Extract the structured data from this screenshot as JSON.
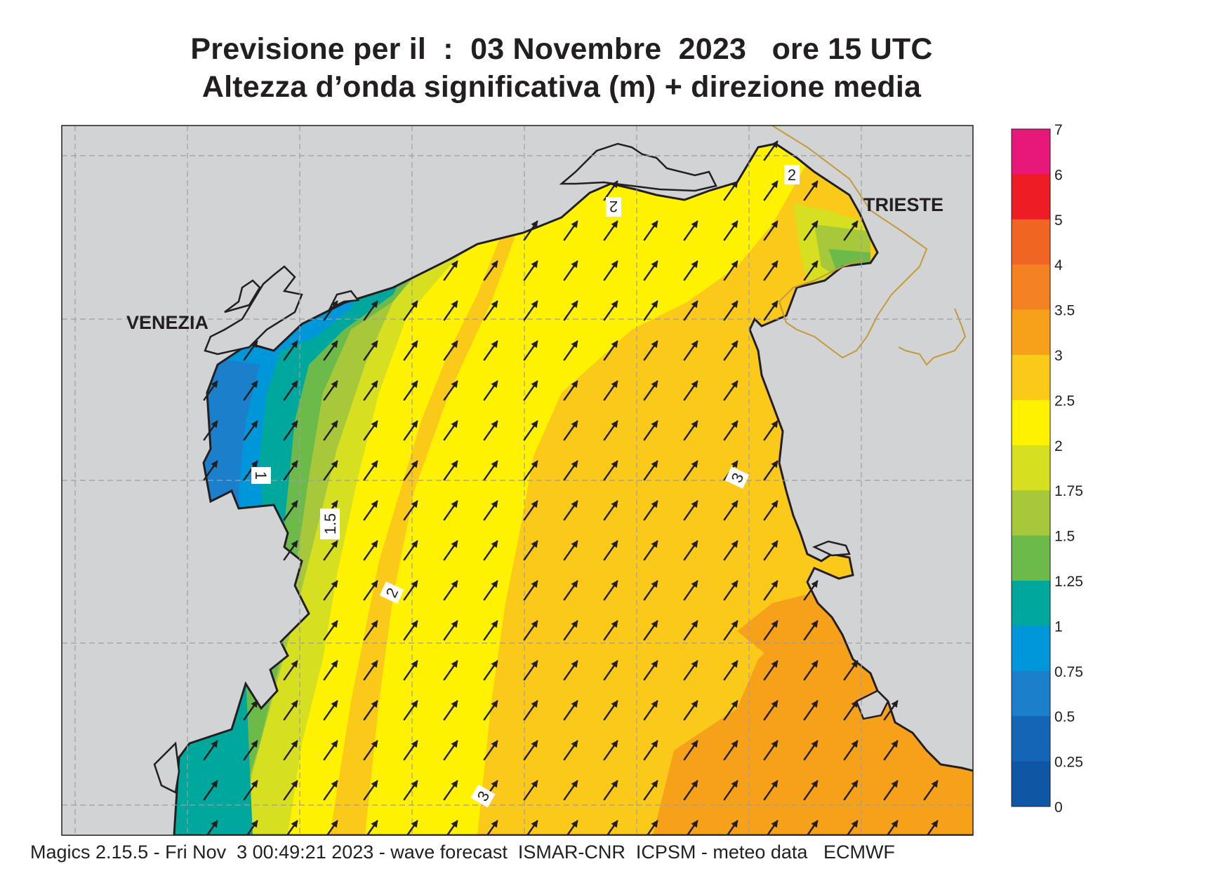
{
  "title_line1": "Previsione per il  :  03 Novembre  2023   ore 15 UTC",
  "title_line2": "Altezza d’onda significativa (m) + direzione media",
  "footer": "Magics 2.15.5 - Fri Nov  3 00:49:21 2023 - wave forecast  ISMAR-CNR  ICPSM - meteo data   ECMWF",
  "places": {
    "venezia": "VENEZIA",
    "trieste": "TRIESTE"
  },
  "contour_labels": [
    "2",
    "2",
    "1",
    "1.5",
    "2",
    "3",
    "3"
  ],
  "legend": {
    "ticks": [
      "7",
      "6",
      "5",
      "4",
      "3.5",
      "3",
      "2.5",
      "2",
      "1.75",
      "1.5",
      "1.25",
      "1",
      "0.75",
      "0.5",
      "0.25",
      "0"
    ],
    "colors": [
      "#e8177a",
      "#ee1c25",
      "#f16522",
      "#f58220",
      "#f7a11a",
      "#fbc91a",
      "#fff200",
      "#d6e020",
      "#a6c83a",
      "#6cbb4a",
      "#00a79d",
      "#0096da",
      "#1b7fcc",
      "#1565b7",
      "#0f56a5"
    ]
  },
  "colors": {
    "land": "#d1d3d4",
    "coast": "#231f20",
    "border": "#c49a3c",
    "arrow": "#231f20"
  },
  "chart_data": {
    "type": "heatmap",
    "variable": "Altezza d’onda significativa (m)",
    "mean_direction": "towards north-east (SW waves)",
    "value_range_m": [
      0,
      7
    ],
    "field_summary": [
      {
        "area": "coast near Venezia",
        "height_m": [
          0.5,
          1.0
        ]
      },
      {
        "area": "western offshore",
        "height_m": [
          1.25,
          1.75
        ]
      },
      {
        "area": "central basin",
        "height_m": [
          2.0,
          2.5
        ]
      },
      {
        "area": "eastern basin (Istria)",
        "height_m": [
          2.5,
          3.0
        ]
      },
      {
        "area": "south-east corner",
        "height_m": [
          3.0,
          3.5
        ]
      },
      {
        "area": "Gulf of Trieste",
        "height_m": [
          1.25,
          2.0
        ]
      }
    ]
  }
}
